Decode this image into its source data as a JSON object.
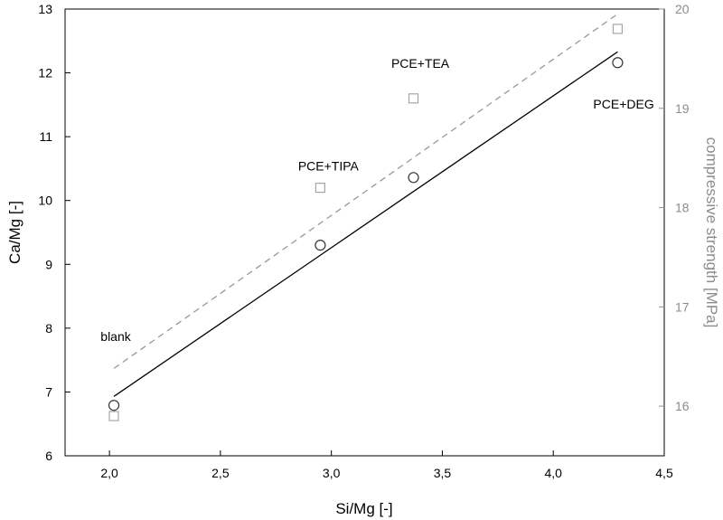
{
  "chart_data": {
    "type": "scatter",
    "xlabel": "Si/Mg [-]",
    "ylabel": "Ca/Mg [-]",
    "y2label": "compressive strength [MPa]",
    "xlim": [
      1.8,
      4.5
    ],
    "ylim": [
      6,
      13
    ],
    "y2lim": [
      15.5,
      20
    ],
    "x_ticks": [
      "2,0",
      "2,5",
      "3,0",
      "3,5",
      "4,0",
      "4,5"
    ],
    "y_ticks": [
      "6",
      "7",
      "8",
      "9",
      "10",
      "11",
      "12",
      "13"
    ],
    "y2_ticks": [
      "16",
      "17",
      "18",
      "19",
      "20"
    ],
    "grid": false,
    "series": [
      {
        "axis": "left",
        "marker": "circle",
        "color": "#333333",
        "x": [
          2.02,
          2.95,
          3.37,
          4.29
        ],
        "y": [
          6.79,
          9.3,
          10.36,
          12.16
        ]
      },
      {
        "axis": "right",
        "marker": "square",
        "color": "#a6a6a6",
        "x": [
          2.02,
          2.95,
          3.37,
          4.29
        ],
        "y": [
          15.9,
          18.2,
          19.1,
          19.8
        ]
      }
    ],
    "fits": [
      {
        "axis": "left",
        "style": "solid",
        "color": "#000000",
        "x": [
          2.02,
          4.29
        ],
        "y": [
          6.93,
          12.33
        ]
      },
      {
        "axis": "right",
        "style": "dashed",
        "color": "#999999",
        "x": [
          2.02,
          4.29
        ],
        "y": [
          16.38,
          19.95
        ]
      }
    ],
    "annotations": [
      {
        "text": "blank",
        "x": 1.96,
        "y": 7.8
      },
      {
        "text": "PCE+TIPA",
        "x": 2.85,
        "y": 10.47
      },
      {
        "text": "PCE+TEA",
        "x": 3.27,
        "y": 12.08
      },
      {
        "text": "PCE+DEG",
        "x": 4.18,
        "y": 11.44
      }
    ]
  }
}
